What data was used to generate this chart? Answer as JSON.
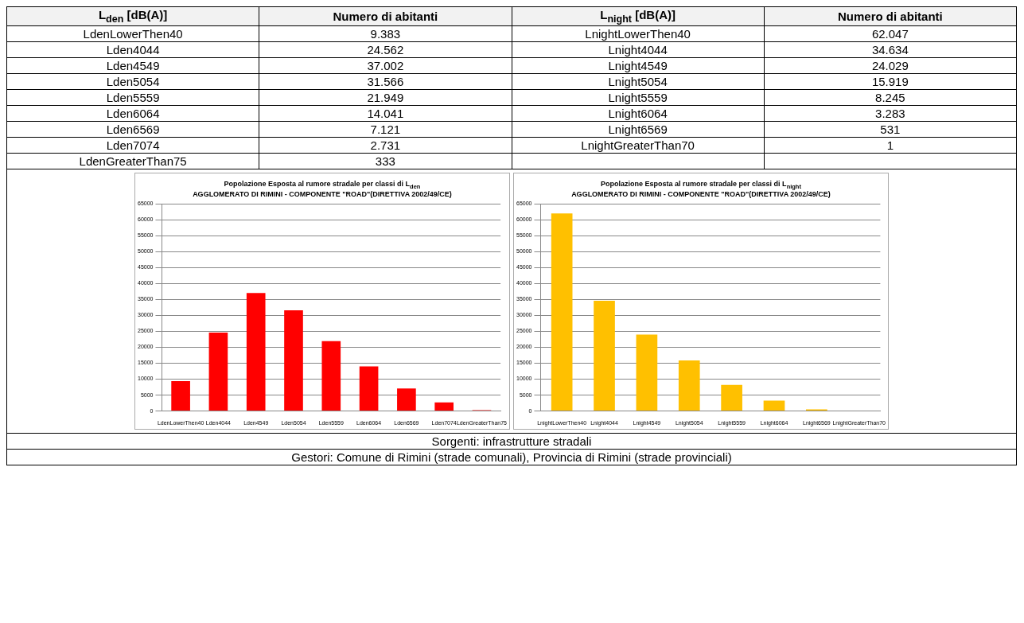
{
  "chart_data": [
    {
      "type": "other",
      "annotations": [
        "L$_{den}$ [dB(A)]",
        "Numero di abitanti",
        "L$_{night}$ [dB(A)]",
        "Numero di abitanti",
        "LdenLowerThen40",
        "9.383",
        "LnightLowerThen40",
        "62.047",
        "Lden4044",
        "24.562",
        "Lnight4044",
        "34.634",
        "Lden4549",
        "37.002",
        "Lnight4549",
        "24.029",
        "Lden5054",
        "31.566",
        "Lnight5054",
        "15.919",
        "Lden5559",
        "21.949",
        "Lnight5559",
        "8.245",
        "Lden6064",
        "14.041",
        "Lnight6064",
        "3.283",
        "Lden6569",
        "7.121",
        "Lnight6569",
        "531",
        "Lden7074",
        "2.731",
        "LnightGreaterThan70",
        "1",
        "LdenGreaterThan75",
        "333"
      ]
    },
    {
      "type": "bar",
      "title": "Popolazione Esposta al rumore stradale per classi di L$_{den}$\nAGGLOMERATO DI RIMINI - COMPONENTE \"ROAD\"(DIRETTIVA 2002/49/CE)",
      "categories": [
        "LdenLowerThen40",
        "Lden4044",
        "Lden4549",
        "Lden5054",
        "Lden5559",
        "Lden6064",
        "Lden6569",
        "Lden7074",
        "LdenGreaterThan75"
      ],
      "values": [
        9400,
        24600,
        37000,
        31600,
        21900,
        14000,
        7100,
        2700,
        300
      ],
      "color": "#ff0000",
      "ylim": [
        0,
        65000
      ],
      "yticks": [
        0,
        5000,
        10000,
        15000,
        20000,
        25000,
        30000,
        35000,
        40000,
        45000,
        50000,
        55000,
        60000,
        65000
      ],
      "grid": "y"
    },
    {
      "type": "bar",
      "title": "Popolazione Esposta al rumore stradale per classi di L$_{night}$\nAGGLOMERATO DI RIMINI - COMPONENTE \"ROAD\"(DIRETTIVA 2002/49/CE)",
      "categories": [
        "LnightLowerThen40",
        "Lnight4044",
        "Lnight4549",
        "Lnight5054",
        "Lnight5559",
        "Lnight6064",
        "Lnight6569",
        "LnightGreaterThan70"
      ],
      "values": [
        62000,
        34600,
        24000,
        15900,
        8200,
        3300,
        500,
        0
      ],
      "color": "#ffc000",
      "ylim": [
        0,
        65000
      ],
      "yticks": [
        0,
        5000,
        10000,
        15000,
        20000,
        25000,
        30000,
        35000,
        40000,
        45000,
        50000,
        55000,
        60000,
        65000
      ],
      "grid": "y"
    },
    {
      "type": "other",
      "annotations": [
        "Sorgenti: infrastrutture stradali",
        "Gestori: Comune di Rimini (strade comunali), Provincia di Rimini (strade provinciali)"
      ]
    }
  ]
}
